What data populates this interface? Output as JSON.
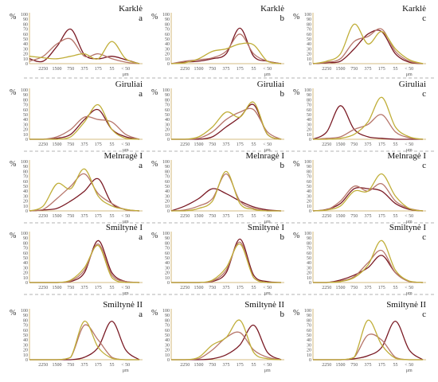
{
  "chart_data": {
    "type": "line",
    "x_tick_labels": [
      "2250",
      "1500",
      "750",
      "375",
      "175",
      "55",
      "< 50"
    ],
    "y_tick_labels": [
      "0",
      "10",
      "20",
      "30",
      "40",
      "50",
      "60",
      "70",
      "80",
      "90",
      "100"
    ],
    "y_unit": "%",
    "x_unit": "μm",
    "ylim": [
      0,
      100
    ],
    "grid": false,
    "colors": {
      "dark": "#7a1a24",
      "medium": "#b6756a",
      "light": "#c0ae38",
      "axis": "#c9a75a",
      "separator": "#9a9a9a"
    },
    "x_positions": [
      0,
      1,
      2,
      3,
      4,
      5,
      6,
      7,
      8
    ],
    "panels": [
      {
        "site": "Karklė",
        "letter": "a",
        "series": [
          {
            "color": "dark",
            "values": [
              10,
              5,
              35,
              70,
              18,
              10,
              15,
              8,
              0
            ]
          },
          {
            "color": "medium",
            "values": [
              5,
              15,
              40,
              50,
              15,
              20,
              10,
              3,
              0
            ]
          },
          {
            "color": "light",
            "values": [
              15,
              12,
              10,
              15,
              20,
              10,
              45,
              10,
              0
            ]
          }
        ]
      },
      {
        "site": "Karklė",
        "letter": "b",
        "series": [
          {
            "color": "dark",
            "values": [
              0,
              3,
              5,
              10,
              20,
              72,
              15,
              5,
              0
            ]
          },
          {
            "color": "medium",
            "values": [
              0,
              5,
              8,
              12,
              25,
              60,
              20,
              5,
              0
            ]
          },
          {
            "color": "light",
            "values": [
              0,
              2,
              10,
              25,
              30,
              40,
              38,
              5,
              0
            ]
          }
        ]
      },
      {
        "site": "Karklė",
        "letter": "c",
        "series": [
          {
            "color": "dark",
            "values": [
              0,
              2,
              5,
              30,
              60,
              65,
              20,
              3,
              0
            ]
          },
          {
            "color": "medium",
            "values": [
              0,
              3,
              10,
              45,
              55,
              70,
              25,
              5,
              0
            ]
          },
          {
            "color": "light",
            "values": [
              0,
              5,
              20,
              80,
              40,
              65,
              30,
              8,
              0
            ]
          }
        ]
      },
      {
        "site": "Giruliai",
        "letter": "a",
        "series": [
          {
            "color": "dark",
            "values": [
              0,
              0,
              2,
              10,
              40,
              60,
              20,
              5,
              0
            ]
          },
          {
            "color": "medium",
            "values": [
              0,
              0,
              5,
              20,
              45,
              40,
              35,
              10,
              0
            ]
          },
          {
            "color": "light",
            "values": [
              0,
              0,
              0,
              5,
              35,
              70,
              20,
              2,
              0
            ]
          }
        ]
      },
      {
        "site": "Giruliai",
        "letter": "b",
        "series": [
          {
            "color": "dark",
            "values": [
              0,
              0,
              0,
              5,
              25,
              45,
              70,
              10,
              0
            ]
          },
          {
            "color": "medium",
            "values": [
              0,
              0,
              2,
              15,
              40,
              55,
              60,
              15,
              0
            ]
          },
          {
            "color": "light",
            "values": [
              0,
              0,
              5,
              25,
              55,
              45,
              75,
              10,
              0
            ]
          }
        ]
      },
      {
        "site": "Giruliai",
        "letter": "c",
        "series": [
          {
            "color": "dark",
            "values": [
              0,
              15,
              68,
              20,
              5,
              2,
              0,
              0,
              0
            ]
          },
          {
            "color": "medium",
            "values": [
              0,
              2,
              5,
              20,
              30,
              50,
              15,
              3,
              0
            ]
          },
          {
            "color": "light",
            "values": [
              0,
              0,
              2,
              10,
              35,
              85,
              25,
              5,
              0
            ]
          }
        ]
      },
      {
        "site": "Melnragė I",
        "letter": "a",
        "series": [
          {
            "color": "dark",
            "values": [
              0,
              2,
              5,
              20,
              40,
              65,
              15,
              3,
              0
            ]
          },
          {
            "color": "medium",
            "values": [
              0,
              3,
              25,
              50,
              75,
              35,
              15,
              2,
              0
            ]
          },
          {
            "color": "light",
            "values": [
              0,
              10,
              55,
              45,
              85,
              30,
              10,
              3,
              0
            ]
          }
        ]
      },
      {
        "site": "Melnragė I",
        "letter": "b",
        "series": [
          {
            "color": "dark",
            "values": [
              0,
              10,
              25,
              45,
              35,
              20,
              8,
              2,
              0
            ]
          },
          {
            "color": "medium",
            "values": [
              0,
              2,
              10,
              25,
              75,
              20,
              5,
              0,
              0
            ]
          },
          {
            "color": "light",
            "values": [
              0,
              0,
              5,
              20,
              80,
              15,
              3,
              0,
              0
            ]
          }
        ]
      },
      {
        "site": "Melnragė I",
        "letter": "c",
        "series": [
          {
            "color": "dark",
            "values": [
              0,
              3,
              15,
              45,
              45,
              40,
              15,
              3,
              0
            ]
          },
          {
            "color": "medium",
            "values": [
              0,
              2,
              20,
              50,
              40,
              55,
              20,
              5,
              0
            ]
          },
          {
            "color": "light",
            "values": [
              0,
              2,
              10,
              40,
              40,
              75,
              30,
              5,
              0
            ]
          }
        ]
      },
      {
        "site": "Smiltynė I",
        "letter": "a",
        "series": [
          {
            "color": "dark",
            "values": [
              0,
              0,
              0,
              2,
              20,
              85,
              20,
              2,
              0
            ]
          },
          {
            "color": "medium",
            "values": [
              0,
              0,
              0,
              3,
              25,
              78,
              15,
              2,
              0
            ]
          },
          {
            "color": "light",
            "values": [
              0,
              0,
              0,
              5,
              30,
              75,
              10,
              0,
              0
            ]
          }
        ]
      },
      {
        "site": "Smiltynė I",
        "letter": "b",
        "series": [
          {
            "color": "dark",
            "values": [
              0,
              0,
              0,
              2,
              20,
              88,
              15,
              2,
              0
            ]
          },
          {
            "color": "medium",
            "values": [
              0,
              0,
              0,
              3,
              25,
              82,
              10,
              0,
              0
            ]
          },
          {
            "color": "light",
            "values": [
              0,
              0,
              0,
              5,
              30,
              78,
              10,
              0,
              0
            ]
          }
        ]
      },
      {
        "site": "Smiltynė I",
        "letter": "c",
        "series": [
          {
            "color": "dark",
            "values": [
              0,
              0,
              5,
              15,
              30,
              55,
              20,
              2,
              0
            ]
          },
          {
            "color": "medium",
            "values": [
              0,
              0,
              3,
              12,
              40,
              65,
              20,
              2,
              0
            ]
          },
          {
            "color": "light",
            "values": [
              0,
              0,
              2,
              10,
              35,
              85,
              25,
              3,
              0
            ]
          }
        ]
      },
      {
        "site": "Smiltynė II",
        "letter": "a",
        "series": [
          {
            "color": "dark",
            "values": [
              0,
              0,
              0,
              0,
              5,
              25,
              78,
              20,
              0
            ]
          },
          {
            "color": "medium",
            "values": [
              0,
              0,
              0,
              5,
              70,
              40,
              5,
              0,
              0
            ]
          },
          {
            "color": "light",
            "values": [
              0,
              0,
              0,
              5,
              78,
              25,
              3,
              0,
              0
            ]
          }
        ]
      },
      {
        "site": "Smiltynė II",
        "letter": "b",
        "series": [
          {
            "color": "dark",
            "values": [
              0,
              0,
              0,
              2,
              10,
              30,
              70,
              15,
              0
            ]
          },
          {
            "color": "medium",
            "values": [
              0,
              0,
              2,
              20,
              45,
              55,
              20,
              5,
              0
            ]
          },
          {
            "color": "light",
            "values": [
              0,
              0,
              5,
              30,
              45,
              80,
              15,
              2,
              0
            ]
          }
        ]
      },
      {
        "site": "Smiltynė II",
        "letter": "c",
        "series": [
          {
            "color": "dark",
            "values": [
              0,
              0,
              0,
              2,
              8,
              25,
              78,
              20,
              0
            ]
          },
          {
            "color": "medium",
            "values": [
              0,
              0,
              0,
              5,
              50,
              40,
              5,
              0,
              0
            ]
          },
          {
            "color": "light",
            "values": [
              0,
              0,
              0,
              5,
              80,
              30,
              3,
              0,
              0
            ]
          }
        ]
      }
    ]
  }
}
